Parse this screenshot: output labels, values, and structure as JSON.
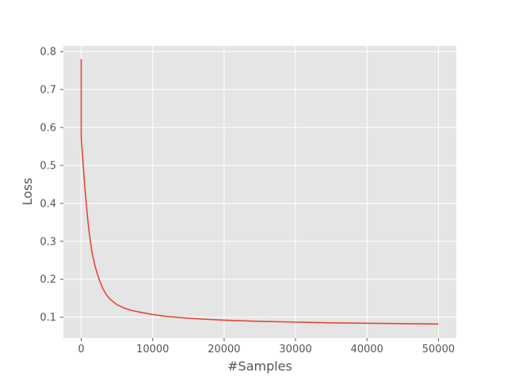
{
  "chart_data": {
    "type": "line",
    "title": "",
    "xlabel": "#Samples",
    "ylabel": "Loss",
    "xlim": [
      -2500,
      52500
    ],
    "ylim": [
      0.045,
      0.815
    ],
    "xticks": [
      0,
      10000,
      20000,
      30000,
      40000,
      50000
    ],
    "yticks": [
      0.1,
      0.2,
      0.3,
      0.4,
      0.5,
      0.6,
      0.7,
      0.8
    ],
    "xtick_labels": [
      "0",
      "10000",
      "20000",
      "30000",
      "40000",
      "50000"
    ],
    "ytick_labels": [
      "0.1",
      "0.2",
      "0.3",
      "0.4",
      "0.5",
      "0.6",
      "0.7",
      "0.8"
    ],
    "grid": true,
    "style": "ggplot",
    "colors": {
      "line": "#E24A33",
      "plot_bg": "#E5E5E5",
      "grid": "#FFFFFF",
      "text": "#555555"
    },
    "series": [
      {
        "x": [
          0,
          1,
          50,
          100,
          200,
          300,
          400,
          500,
          700,
          900,
          1100,
          1300,
          1500,
          1750,
          2000,
          2500,
          3000,
          3500,
          4000,
          5000,
          6000,
          7000,
          8000,
          10000,
          12000,
          15000,
          20000,
          25000,
          30000,
          35000,
          40000,
          45000,
          50000
        ],
        "values": [
          0.78,
          0.575,
          0.56,
          0.545,
          0.52,
          0.495,
          0.47,
          0.445,
          0.4,
          0.36,
          0.325,
          0.297,
          0.272,
          0.25,
          0.23,
          0.2,
          0.176,
          0.16,
          0.148,
          0.133,
          0.124,
          0.118,
          0.114,
          0.107,
          0.102,
          0.097,
          0.092,
          0.089,
          0.087,
          0.085,
          0.084,
          0.083,
          0.082
        ]
      }
    ]
  }
}
